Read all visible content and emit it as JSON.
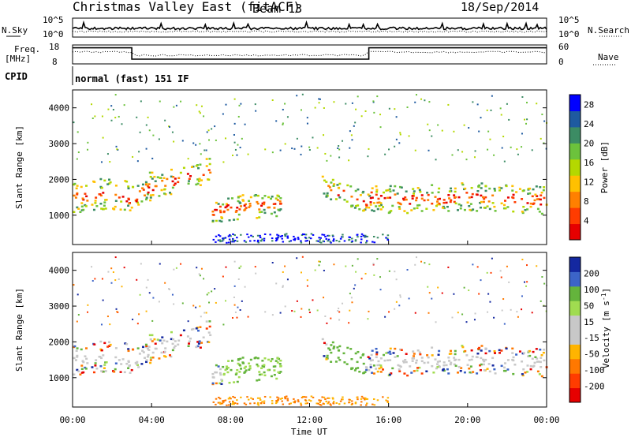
{
  "header": {
    "title": "Christmas Valley East (fitACF)",
    "beam": "Beam 13",
    "date": "18/Sep/2014"
  },
  "colors": {
    "power_scale": [
      "#0000ff",
      "#1e5aa0",
      "#3c8c64",
      "#6cc23c",
      "#b4d800",
      "#ffc000",
      "#ff8000",
      "#ff3c00",
      "#e60000"
    ],
    "velocity_scale": [
      "#1428a0",
      "#3c64c8",
      "#64b43c",
      "#a0dc50",
      "#c8c8c8",
      "#c8c8c8",
      "#ffb400",
      "#ff7800",
      "#ff3c00",
      "#e60000"
    ]
  },
  "chart_data": [
    {
      "type": "line",
      "panel": "noise",
      "left_label": "N.Sky",
      "right_label": "N.Search",
      "left_ticks": [
        "10^5",
        "10^0"
      ],
      "right_ticks": [
        "10^5",
        "10^0"
      ],
      "series": [
        {
          "name": "N.Sky",
          "style": "solid"
        },
        {
          "name": "N.Search",
          "style": "dotted"
        }
      ]
    },
    {
      "type": "line",
      "panel": "frequency",
      "left_label": "Freq.",
      "left_unit": "[MHz]",
      "right_label": "Nave",
      "left_ticks": [
        18,
        8
      ],
      "right_ticks": [
        60,
        0
      ],
      "series": [
        {
          "name": "Freq.",
          "style": "solid",
          "x": [
            "00:00",
            "03:00",
            "03:00",
            "15:00",
            "15:00",
            "24:00"
          ],
          "y": [
            16.5,
            16.5,
            10.5,
            10.5,
            16.5,
            16.5
          ]
        },
        {
          "name": "Nave",
          "style": "dotted"
        }
      ]
    },
    {
      "type": "text",
      "panel": "cpid",
      "label": "CPID",
      "value": "normal (fast) 151 IF"
    },
    {
      "type": "heatmap",
      "panel": "power",
      "ylabel": "Slant Range [km]",
      "yticks": [
        1000,
        2000,
        3000,
        4000
      ],
      "ylim": [
        180,
        4500
      ],
      "xlim": [
        "00:00",
        "24:00"
      ],
      "colorbar_label": "Power [dB]",
      "colorbar_ticks": [
        4,
        8,
        12,
        16,
        20,
        24,
        28
      ],
      "colorbar_range": [
        0,
        30
      ]
    },
    {
      "type": "heatmap",
      "panel": "velocity",
      "ylabel": "Slant Range [km]",
      "yticks": [
        1000,
        2000,
        3000,
        4000
      ],
      "ylim": [
        180,
        4500
      ],
      "xlim": [
        "00:00",
        "24:00"
      ],
      "xticks": [
        "00:00",
        "04:00",
        "08:00",
        "12:00",
        "16:00",
        "20:00",
        "00:00"
      ],
      "xlabel": "Time UT",
      "colorbar_label": "Velocity [m s-1]",
      "colorbar_label_base": "Velocity [m s",
      "colorbar_label_sup": "-1",
      "colorbar_label_end": "]",
      "colorbar_ticks": [
        200,
        100,
        50,
        15,
        -15,
        -50,
        -100,
        -200
      ]
    }
  ]
}
